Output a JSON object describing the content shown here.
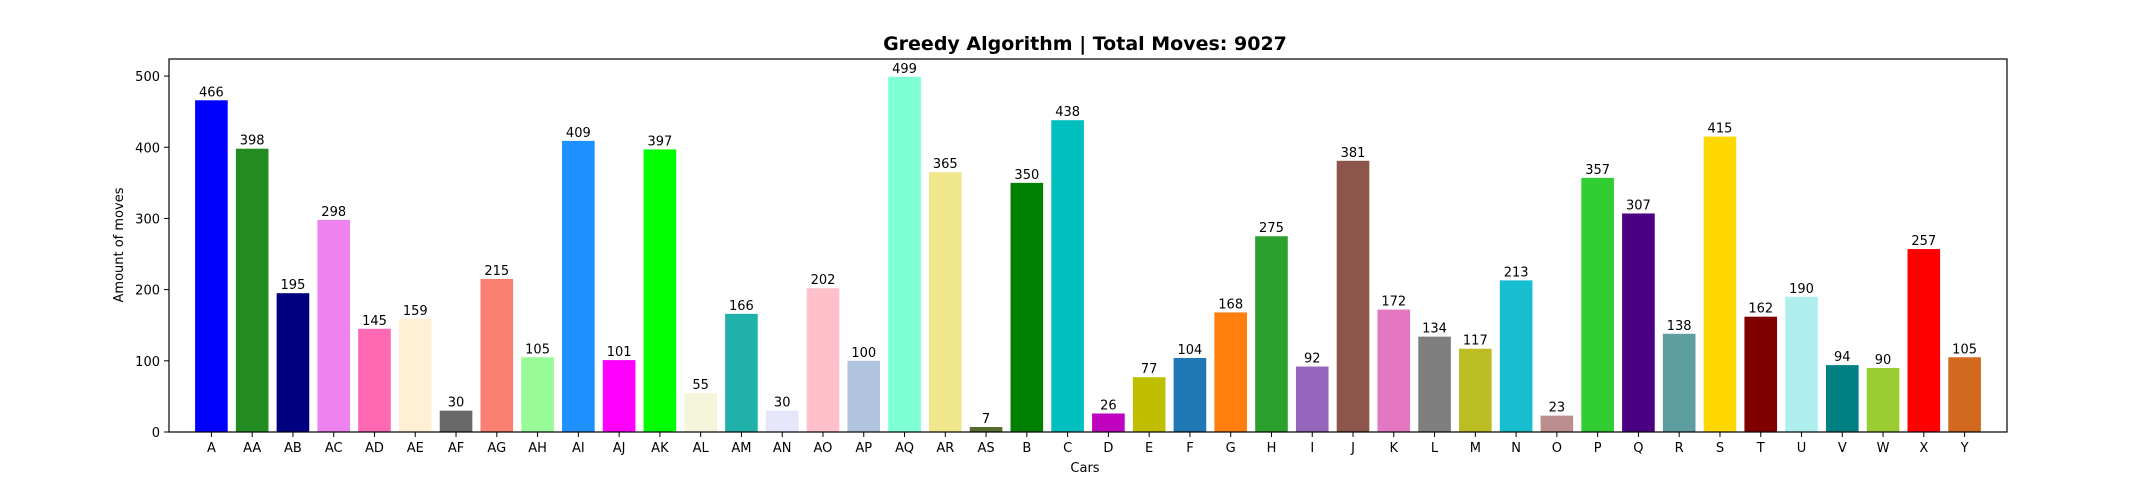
{
  "chart_data": {
    "type": "bar",
    "title": "Greedy Algorithm | Total Moves: 9027",
    "xlabel": "Cars",
    "ylabel": "Amount of moves",
    "ylim": [
      0,
      524
    ],
    "yticks": [
      0,
      100,
      200,
      300,
      400,
      500
    ],
    "grid": false,
    "categories": [
      "A",
      "AA",
      "AB",
      "AC",
      "AD",
      "AE",
      "AF",
      "AG",
      "AH",
      "AI",
      "AJ",
      "AK",
      "AL",
      "AM",
      "AN",
      "AO",
      "AP",
      "AQ",
      "AR",
      "AS",
      "B",
      "C",
      "D",
      "E",
      "F",
      "G",
      "H",
      "I",
      "J",
      "K",
      "L",
      "M",
      "N",
      "O",
      "P",
      "Q",
      "R",
      "S",
      "T",
      "U",
      "V",
      "W",
      "X",
      "Y"
    ],
    "values": [
      466,
      398,
      195,
      298,
      145,
      159,
      30,
      215,
      105,
      409,
      101,
      397,
      55,
      166,
      30,
      202,
      100,
      499,
      365,
      7,
      350,
      438,
      26,
      77,
      104,
      168,
      275,
      92,
      381,
      172,
      134,
      117,
      213,
      23,
      357,
      307,
      138,
      415,
      162,
      190,
      94,
      90,
      257,
      105
    ],
    "colors": [
      "#0000ff",
      "#228b22",
      "#000080",
      "#ee82ee",
      "#ff69b4",
      "#ffefd5",
      "#696969",
      "#fa8072",
      "#98fb98",
      "#1e90ff",
      "#ff00ff",
      "#00ff00",
      "#f5f5dc",
      "#20b2aa",
      "#e6e6fa",
      "#ffc0cb",
      "#b0c4de",
      "#7fffd4",
      "#f0e68c",
      "#556b2f",
      "#008000",
      "#00bfbf",
      "#bf00bf",
      "#bfbf00",
      "#1f77b4",
      "#ff7f0e",
      "#2ca02c",
      "#9467bd",
      "#8c564b",
      "#e377c2",
      "#7f7f7f",
      "#bcbd22",
      "#17becf",
      "#bc8f8f",
      "#32cd32",
      "#4b0082",
      "#5f9ea0",
      "#ffd700",
      "#800000",
      "#afeeee",
      "#008080",
      "#9acd32",
      "#ff0000",
      "#d2691e"
    ]
  }
}
